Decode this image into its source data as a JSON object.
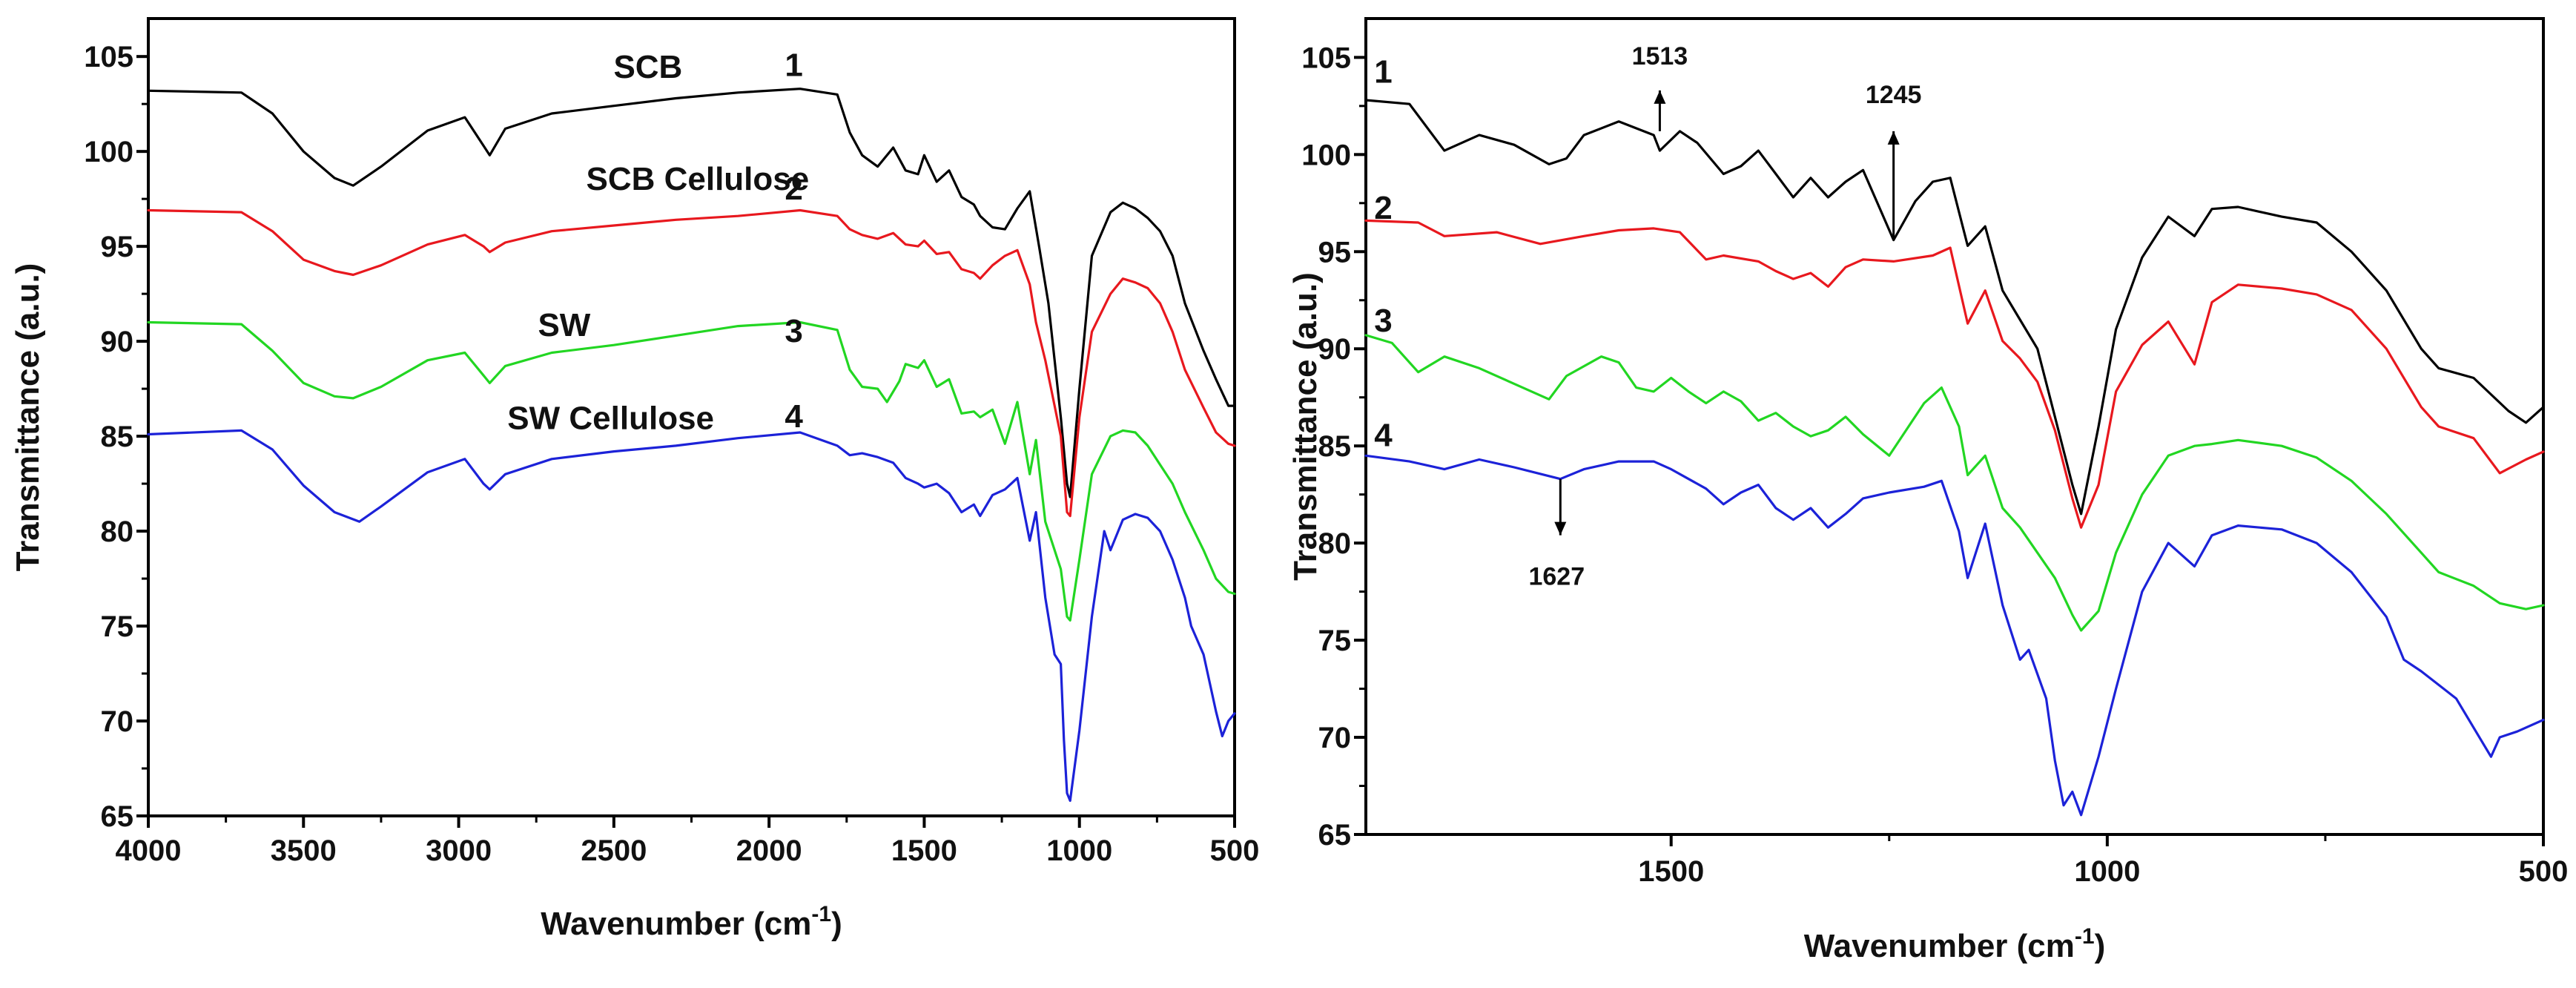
{
  "chart_data": [
    {
      "type": "line",
      "panel": "left",
      "title": "",
      "xlabel": "Wavenumber (cm",
      "xlabel_sup": "-1",
      "xlabel_end": ")",
      "ylabel": "Transmittance (a.u.)",
      "xlim": [
        4000,
        500
      ],
      "ylim": [
        65,
        107
      ],
      "xticks": [
        4000,
        3500,
        3000,
        2500,
        2000,
        1500,
        1000,
        500
      ],
      "yticks": [
        65,
        70,
        75,
        80,
        85,
        90,
        95,
        100,
        105
      ],
      "grid": false,
      "series": [
        {
          "name": "SCB",
          "number": "1",
          "color": "#000000",
          "label_pos": [
            2390,
            104.5
          ],
          "number_pos": [
            1920,
            104.6
          ],
          "x": [
            4000,
            3700,
            3600,
            3500,
            3400,
            3340,
            3250,
            3100,
            2980,
            2920,
            2900,
            2850,
            2700,
            2500,
            2300,
            2100,
            1900,
            1780,
            1740,
            1700,
            1650,
            1600,
            1560,
            1520,
            1500,
            1460,
            1420,
            1380,
            1340,
            1320,
            1280,
            1240,
            1200,
            1160,
            1130,
            1100,
            1060,
            1040,
            1030,
            1000,
            960,
            900,
            860,
            820,
            780,
            740,
            700,
            660,
            600,
            560,
            520,
            500
          ],
          "y": [
            103.2,
            103.1,
            102.0,
            100.0,
            98.6,
            98.2,
            99.2,
            101.1,
            101.8,
            100.3,
            99.8,
            101.2,
            102.0,
            102.4,
            102.8,
            103.1,
            103.3,
            103.0,
            101.0,
            99.8,
            99.2,
            100.2,
            99.0,
            98.8,
            99.8,
            98.4,
            99.0,
            97.6,
            97.2,
            96.6,
            96.0,
            95.9,
            97.0,
            97.9,
            95.0,
            92.0,
            86.0,
            82.5,
            81.8,
            87.5,
            94.5,
            96.8,
            97.3,
            97.0,
            96.5,
            95.8,
            94.5,
            92.0,
            89.5,
            88.0,
            86.6,
            86.6
          ]
        },
        {
          "name": "SCB Cellulose",
          "number": "2",
          "color": "#e8181e",
          "label_pos": [
            2230,
            98.6
          ],
          "number_pos": [
            1920,
            98.1
          ],
          "x": [
            4000,
            3700,
            3600,
            3500,
            3400,
            3340,
            3250,
            3100,
            2980,
            2920,
            2900,
            2850,
            2700,
            2500,
            2300,
            2100,
            1900,
            1780,
            1740,
            1700,
            1650,
            1600,
            1560,
            1520,
            1500,
            1460,
            1420,
            1380,
            1340,
            1320,
            1280,
            1240,
            1200,
            1160,
            1140,
            1110,
            1060,
            1040,
            1030,
            1000,
            960,
            900,
            860,
            820,
            780,
            740,
            700,
            660,
            600,
            560,
            520,
            500
          ],
          "y": [
            96.9,
            96.8,
            95.8,
            94.3,
            93.7,
            93.5,
            94.0,
            95.1,
            95.6,
            95.0,
            94.7,
            95.2,
            95.8,
            96.1,
            96.4,
            96.6,
            96.9,
            96.6,
            95.9,
            95.6,
            95.4,
            95.7,
            95.1,
            95.0,
            95.3,
            94.6,
            94.7,
            93.8,
            93.6,
            93.3,
            94.0,
            94.5,
            94.8,
            93.0,
            91.0,
            89.0,
            85.0,
            81.0,
            80.8,
            86.0,
            90.5,
            92.5,
            93.3,
            93.1,
            92.8,
            92.0,
            90.5,
            88.5,
            86.5,
            85.2,
            84.6,
            84.5
          ]
        },
        {
          "name": "SW",
          "number": "3",
          "color": "#22d622",
          "label_pos": [
            2660,
            90.9
          ],
          "number_pos": [
            1920,
            90.6
          ],
          "x": [
            4000,
            3700,
            3600,
            3500,
            3400,
            3340,
            3250,
            3100,
            2980,
            2920,
            2900,
            2850,
            2700,
            2500,
            2300,
            2100,
            1900,
            1780,
            1740,
            1700,
            1650,
            1620,
            1580,
            1560,
            1520,
            1500,
            1460,
            1420,
            1380,
            1340,
            1320,
            1280,
            1240,
            1200,
            1160,
            1140,
            1110,
            1060,
            1040,
            1030,
            1000,
            960,
            900,
            860,
            820,
            780,
            740,
            700,
            660,
            600,
            560,
            520,
            500
          ],
          "y": [
            91.0,
            90.9,
            89.5,
            87.8,
            87.1,
            87.0,
            87.6,
            89.0,
            89.4,
            88.2,
            87.8,
            88.7,
            89.4,
            89.8,
            90.3,
            90.8,
            91.0,
            90.6,
            88.5,
            87.6,
            87.5,
            86.8,
            87.9,
            88.8,
            88.6,
            89.0,
            87.6,
            88.0,
            86.2,
            86.3,
            86.0,
            86.4,
            84.6,
            86.8,
            83.0,
            84.8,
            80.5,
            78.0,
            75.5,
            75.3,
            78.5,
            83.0,
            85.0,
            85.3,
            85.2,
            84.5,
            83.5,
            82.5,
            81.0,
            79.0,
            77.5,
            76.8,
            76.7
          ]
        },
        {
          "name": "SW Cellulose",
          "number": "4",
          "color": "#1c22d8",
          "label_pos": [
            2510,
            86.0
          ],
          "number_pos": [
            1920,
            86.1
          ],
          "x": [
            4000,
            3700,
            3600,
            3500,
            3400,
            3320,
            3250,
            3100,
            2980,
            2920,
            2900,
            2850,
            2700,
            2500,
            2300,
            2100,
            1900,
            1780,
            1740,
            1700,
            1650,
            1600,
            1560,
            1520,
            1500,
            1460,
            1420,
            1380,
            1340,
            1320,
            1280,
            1240,
            1200,
            1160,
            1140,
            1110,
            1080,
            1060,
            1050,
            1040,
            1030,
            1000,
            960,
            920,
            900,
            860,
            820,
            780,
            740,
            700,
            660,
            640,
            600,
            560,
            540,
            520,
            500
          ],
          "y": [
            85.1,
            85.3,
            84.3,
            82.4,
            81.0,
            80.5,
            81.3,
            83.1,
            83.8,
            82.5,
            82.2,
            83.0,
            83.8,
            84.2,
            84.5,
            84.9,
            85.2,
            84.5,
            84.0,
            84.1,
            83.9,
            83.6,
            82.8,
            82.5,
            82.3,
            82.5,
            82.0,
            81.0,
            81.4,
            80.8,
            81.9,
            82.2,
            82.8,
            79.5,
            81.0,
            76.5,
            73.5,
            73.0,
            69.0,
            66.2,
            65.8,
            69.5,
            75.5,
            80.0,
            79.0,
            80.6,
            80.9,
            80.7,
            80.0,
            78.5,
            76.5,
            75.0,
            73.5,
            70.5,
            69.2,
            70.0,
            70.4
          ]
        }
      ],
      "annotations": []
    },
    {
      "type": "line",
      "panel": "right",
      "title": "",
      "xlabel": "Wavenumber (cm",
      "xlabel_sup": "-1",
      "xlabel_end": ")",
      "ylabel": "Transmittance (a.u.)",
      "xlim": [
        1850,
        500
      ],
      "ylim": [
        65,
        107
      ],
      "xticks": [
        1500,
        1000,
        500
      ],
      "yticks": [
        65,
        70,
        75,
        80,
        85,
        90,
        95,
        100,
        105
      ],
      "grid": false,
      "series": [
        {
          "name": "",
          "number": "1",
          "color": "#000000",
          "label_pos": null,
          "number_pos": [
            1830,
            104.3
          ],
          "x": [
            1850,
            1800,
            1760,
            1720,
            1680,
            1640,
            1620,
            1600,
            1560,
            1520,
            1513,
            1490,
            1470,
            1440,
            1420,
            1400,
            1380,
            1360,
            1340,
            1320,
            1300,
            1280,
            1245,
            1220,
            1200,
            1180,
            1160,
            1140,
            1120,
            1100,
            1080,
            1060,
            1040,
            1030,
            1010,
            990,
            960,
            930,
            900,
            880,
            850,
            800,
            760,
            720,
            680,
            640,
            620,
            580,
            540,
            520,
            500
          ],
          "y": [
            102.8,
            102.6,
            100.2,
            101.0,
            100.5,
            99.5,
            99.8,
            101.0,
            101.7,
            101.0,
            100.2,
            101.2,
            100.6,
            99.0,
            99.4,
            100.2,
            99.0,
            97.8,
            98.8,
            97.8,
            98.6,
            99.2,
            95.6,
            97.6,
            98.6,
            98.8,
            95.3,
            96.3,
            93.0,
            91.5,
            90.0,
            86.5,
            83.0,
            81.5,
            86.0,
            91.0,
            94.7,
            96.8,
            95.8,
            97.2,
            97.3,
            96.8,
            96.5,
            95.0,
            93.0,
            90.0,
            89.0,
            88.5,
            86.8,
            86.2,
            87.0
          ]
        },
        {
          "name": "",
          "number": "2",
          "color": "#e8181e",
          "label_pos": null,
          "number_pos": [
            1830,
            97.3
          ],
          "x": [
            1850,
            1790,
            1760,
            1700,
            1650,
            1600,
            1560,
            1520,
            1490,
            1460,
            1440,
            1400,
            1380,
            1360,
            1340,
            1320,
            1300,
            1280,
            1245,
            1200,
            1180,
            1160,
            1140,
            1120,
            1100,
            1080,
            1060,
            1040,
            1030,
            1010,
            990,
            960,
            930,
            900,
            880,
            850,
            800,
            760,
            720,
            680,
            640,
            620,
            580,
            550,
            520,
            500
          ],
          "y": [
            96.6,
            96.5,
            95.8,
            96.0,
            95.4,
            95.8,
            96.1,
            96.2,
            96.0,
            94.6,
            94.8,
            94.5,
            94.0,
            93.6,
            93.9,
            93.2,
            94.2,
            94.6,
            94.5,
            94.8,
            95.2,
            91.3,
            93.0,
            90.4,
            89.5,
            88.3,
            85.8,
            82.3,
            80.8,
            83.0,
            87.8,
            90.2,
            91.4,
            89.2,
            92.4,
            93.3,
            93.1,
            92.8,
            92.0,
            90.0,
            87.0,
            86.0,
            85.4,
            83.6,
            84.3,
            84.7
          ]
        },
        {
          "name": "",
          "number": "3",
          "color": "#22d622",
          "label_pos": null,
          "number_pos": [
            1830,
            91.5
          ],
          "x": [
            1850,
            1820,
            1790,
            1760,
            1720,
            1680,
            1640,
            1620,
            1580,
            1560,
            1540,
            1520,
            1500,
            1480,
            1460,
            1440,
            1420,
            1400,
            1380,
            1360,
            1340,
            1320,
            1300,
            1280,
            1250,
            1210,
            1190,
            1170,
            1160,
            1140,
            1120,
            1100,
            1080,
            1060,
            1040,
            1030,
            1010,
            990,
            960,
            930,
            900,
            880,
            850,
            800,
            760,
            720,
            680,
            640,
            620,
            580,
            550,
            520,
            500
          ],
          "y": [
            90.7,
            90.3,
            88.8,
            89.6,
            89.0,
            88.2,
            87.4,
            88.6,
            89.6,
            89.3,
            88.0,
            87.8,
            88.5,
            87.8,
            87.2,
            87.8,
            87.3,
            86.3,
            86.7,
            86.0,
            85.5,
            85.8,
            86.5,
            85.6,
            84.5,
            87.2,
            88.0,
            86.0,
            83.5,
            84.5,
            81.8,
            80.8,
            79.5,
            78.2,
            76.3,
            75.5,
            76.5,
            79.5,
            82.5,
            84.5,
            85.0,
            85.1,
            85.3,
            85.0,
            84.4,
            83.2,
            81.5,
            79.5,
            78.5,
            77.8,
            76.9,
            76.6,
            76.8
          ]
        },
        {
          "name": "",
          "number": "4",
          "color": "#1c22d8",
          "label_pos": null,
          "number_pos": [
            1830,
            85.6
          ],
          "x": [
            1850,
            1800,
            1760,
            1720,
            1680,
            1627,
            1600,
            1560,
            1520,
            1500,
            1480,
            1460,
            1440,
            1420,
            1400,
            1380,
            1360,
            1340,
            1320,
            1300,
            1280,
            1250,
            1210,
            1190,
            1170,
            1160,
            1140,
            1120,
            1100,
            1090,
            1070,
            1060,
            1050,
            1040,
            1030,
            1010,
            990,
            960,
            930,
            900,
            880,
            850,
            800,
            760,
            720,
            680,
            660,
            640,
            600,
            560,
            550,
            530,
            500
          ],
          "y": [
            84.5,
            84.2,
            83.8,
            84.3,
            83.9,
            83.3,
            83.8,
            84.2,
            84.2,
            83.8,
            83.3,
            82.8,
            82.0,
            82.6,
            83.0,
            81.8,
            81.2,
            81.8,
            80.8,
            81.5,
            82.3,
            82.6,
            82.9,
            83.2,
            80.6,
            78.2,
            81.0,
            76.8,
            74.0,
            74.5,
            72.0,
            68.8,
            66.5,
            67.2,
            66.0,
            69.0,
            72.5,
            77.5,
            80.0,
            78.8,
            80.4,
            80.9,
            80.7,
            80.0,
            78.5,
            76.2,
            74.0,
            73.4,
            72.0,
            69.0,
            70.0,
            70.3,
            70.9
          ]
        }
      ],
      "annotations": [
        {
          "text": "1513",
          "x": 1513,
          "from_y": 101.2,
          "to_y": 103.3,
          "text_y": 105.1,
          "direction": "up"
        },
        {
          "text": "1245",
          "x": 1245,
          "from_y": 95.6,
          "to_y": 101.2,
          "text_y": 103.1,
          "direction": "up"
        },
        {
          "text": "1627",
          "x": 1627,
          "from_y": 83.3,
          "to_y": 80.4,
          "text_y": 78.3,
          "direction": "down"
        }
      ]
    }
  ]
}
